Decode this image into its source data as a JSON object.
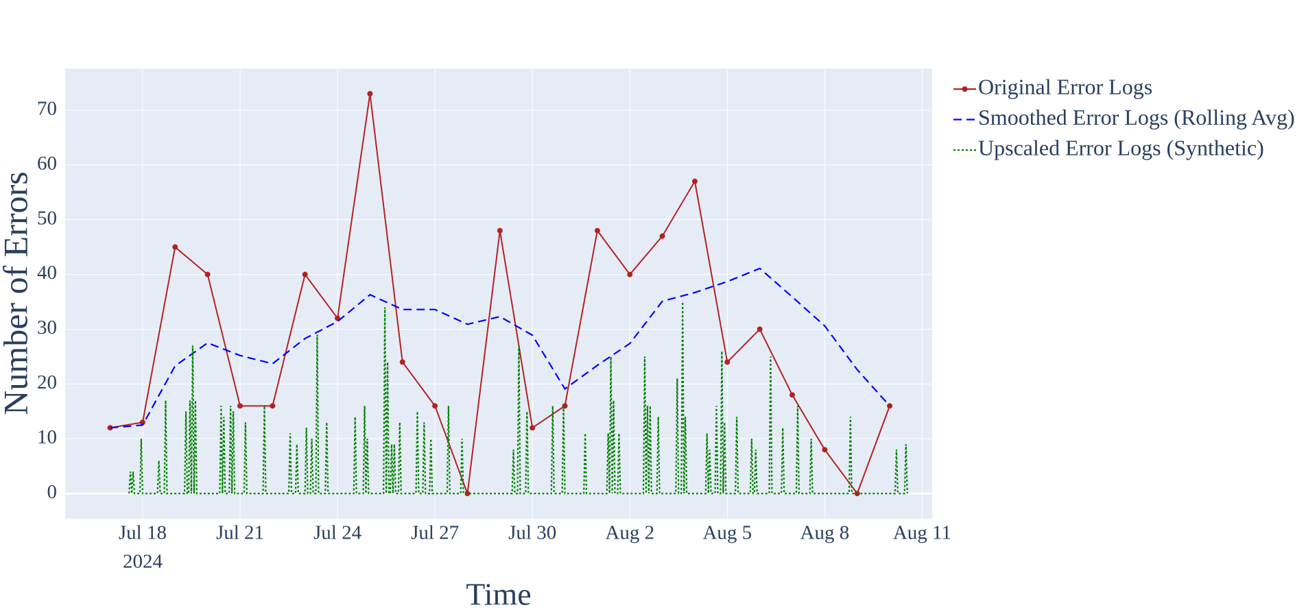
{
  "chart_data": {
    "type": "line",
    "x_title": "Time",
    "y_title": "Number of Errors",
    "x_year_label": "2024",
    "xlim": [
      "2024-07-15T14:46",
      "2024-08-11T07:23"
    ],
    "xticks": [
      {
        "value": "2024-07-18",
        "label": "Jul 18"
      },
      {
        "value": "2024-07-21",
        "label": "Jul 21"
      },
      {
        "value": "2024-07-24",
        "label": "Jul 24"
      },
      {
        "value": "2024-07-27",
        "label": "Jul 27"
      },
      {
        "value": "2024-07-30",
        "label": "Jul 30"
      },
      {
        "value": "2024-08-02",
        "label": "Aug 2"
      },
      {
        "value": "2024-08-05",
        "label": "Aug 5"
      },
      {
        "value": "2024-08-08",
        "label": "Aug 8"
      },
      {
        "value": "2024-08-11",
        "label": "Aug 11"
      }
    ],
    "ylim": [
      -4.6,
      77.6
    ],
    "yticks": [
      0,
      10,
      20,
      30,
      40,
      50,
      60,
      70
    ],
    "grid": true,
    "legend": "outside-top-right",
    "series": [
      {
        "name": "Original Error Logs",
        "color": "#b22222",
        "dash": "solid",
        "markers": true,
        "x": [
          "2024-07-17",
          "2024-07-18",
          "2024-07-19",
          "2024-07-20",
          "2024-07-21",
          "2024-07-22",
          "2024-07-23",
          "2024-07-24",
          "2024-07-25",
          "2024-07-26",
          "2024-07-27",
          "2024-07-28",
          "2024-07-29",
          "2024-07-30",
          "2024-07-31",
          "2024-08-01",
          "2024-08-02",
          "2024-08-03",
          "2024-08-04",
          "2024-08-05",
          "2024-08-06",
          "2024-08-07",
          "2024-08-08",
          "2024-08-09",
          "2024-08-10"
        ],
        "values": [
          12,
          13,
          45,
          40,
          16,
          16,
          40,
          32,
          73,
          24,
          16,
          0,
          48,
          12,
          16,
          48,
          40,
          47,
          57,
          24,
          30,
          18,
          8,
          0,
          16
        ]
      },
      {
        "name": "Smoothed Error Logs (Rolling Avg)",
        "color": "#0000ff",
        "dash": "dash",
        "markers": false,
        "x": [
          "2024-07-17",
          "2024-07-18",
          "2024-07-19",
          "2024-07-20",
          "2024-07-21",
          "2024-07-22",
          "2024-07-23",
          "2024-07-24",
          "2024-07-25",
          "2024-07-26",
          "2024-07-27",
          "2024-07-28",
          "2024-07-29",
          "2024-07-30",
          "2024-07-31",
          "2024-08-01",
          "2024-08-02",
          "2024-08-03",
          "2024-08-04",
          "2024-08-05",
          "2024-08-06",
          "2024-08-07",
          "2024-08-08",
          "2024-08-09",
          "2024-08-10"
        ],
        "values": [
          12,
          12.5,
          23.3,
          27.5,
          25.2,
          23.7,
          28.3,
          31.4,
          36.3,
          33.6,
          33.6,
          30.9,
          32.3,
          28.9,
          19.1,
          23.4,
          27.4,
          35.1,
          36.7,
          38.7,
          41.1,
          35.9,
          30.6,
          22.6,
          16
        ]
      },
      {
        "name": "Upscaled Error Logs (Synthetic)",
        "color": "#008000",
        "dash": "dot",
        "markers": false,
        "x": [
          "2024-07-17T14:00",
          "2024-07-17T15:00",
          "2024-07-17T16:00",
          "2024-07-17T17:00",
          "2024-07-17T18:00",
          "2024-07-17T22:00",
          "2024-07-17T23:00",
          "2024-07-18T00:00",
          "2024-07-18T11:00",
          "2024-07-18T12:00",
          "2024-07-18T13:00",
          "2024-07-18T16:00",
          "2024-07-18T17:00",
          "2024-07-18T18:00",
          "2024-07-19T07:00",
          "2024-07-19T08:00",
          "2024-07-19T09:00",
          "2024-07-19T10:00",
          "2024-07-19T11:00",
          "2024-07-19T12:00",
          "2024-07-19T13:00",
          "2024-07-19T14:00",
          "2024-07-19T15:00",
          "2024-07-19T16:00",
          "2024-07-20T09:00",
          "2024-07-20T10:00",
          "2024-07-20T11:00",
          "2024-07-20T12:00",
          "2024-07-20T13:00",
          "2024-07-20T16:00",
          "2024-07-20T17:00",
          "2024-07-20T18:00",
          "2024-07-20T19:00",
          "2024-07-20T20:00",
          "2024-07-21T03:00",
          "2024-07-21T04:00",
          "2024-07-21T05:00",
          "2024-07-21T17:00",
          "2024-07-21T18:00",
          "2024-07-21T19:00",
          "2024-07-22T12:00",
          "2024-07-22T13:00",
          "2024-07-22T14:00",
          "2024-07-22T17:00",
          "2024-07-22T18:00",
          "2024-07-22T19:00",
          "2024-07-23T00:00",
          "2024-07-23T01:00",
          "2024-07-23T02:00",
          "2024-07-23T04:00",
          "2024-07-23T05:00",
          "2024-07-23T06:00",
          "2024-07-23T08:00",
          "2024-07-23T09:00",
          "2024-07-23T10:00",
          "2024-07-23T15:00",
          "2024-07-23T16:00",
          "2024-07-23T17:00",
          "2024-07-24T12:00",
          "2024-07-24T13:00",
          "2024-07-24T14:00",
          "2024-07-24T19:00",
          "2024-07-24T20:00",
          "2024-07-24T21:00",
          "2024-07-24T22:00",
          "2024-07-24T23:00",
          "2024-07-25T10:00",
          "2024-07-25T11:00",
          "2024-07-25T12:00",
          "2024-07-25T13:00",
          "2024-07-25T14:00",
          "2024-07-25T15:00",
          "2024-07-25T16:00",
          "2024-07-25T17:00",
          "2024-07-25T18:00",
          "2024-07-25T19:00",
          "2024-07-25T21:00",
          "2024-07-25T22:00",
          "2024-07-25T23:00",
          "2024-07-26T10:00",
          "2024-07-26T11:00",
          "2024-07-26T12:00",
          "2024-07-26T15:00",
          "2024-07-26T16:00",
          "2024-07-26T17:00",
          "2024-07-26T20:00",
          "2024-07-26T21:00",
          "2024-07-26T22:00",
          "2024-07-27T09:00",
          "2024-07-27T10:00",
          "2024-07-27T11:00",
          "2024-07-27T19:00",
          "2024-07-27T20:00",
          "2024-07-27T21:00",
          "2024-07-29T09:00",
          "2024-07-29T10:00",
          "2024-07-29T11:00",
          "2024-07-29T13:00",
          "2024-07-29T14:00",
          "2024-07-29T15:00",
          "2024-07-29T19:00",
          "2024-07-29T20:00",
          "2024-07-29T21:00",
          "2024-07-30T14:00",
          "2024-07-30T15:00",
          "2024-07-30T16:00",
          "2024-07-30T22:00",
          "2024-07-30T23:00",
          "2024-07-31T00:00",
          "2024-07-31T14:00",
          "2024-07-31T15:00",
          "2024-07-31T16:00",
          "2024-08-01T07:00",
          "2024-08-01T08:00",
          "2024-08-01T09:00",
          "2024-08-01T10:00",
          "2024-08-01T11:00",
          "2024-08-01T12:00",
          "2024-08-01T13:00",
          "2024-08-01T15:00",
          "2024-08-01T16:00",
          "2024-08-01T17:00",
          "2024-08-02T10:00",
          "2024-08-02T11:00",
          "2024-08-02T12:00",
          "2024-08-02T13:00",
          "2024-08-02T14:00",
          "2024-08-02T15:00",
          "2024-08-02T16:00",
          "2024-08-02T20:00",
          "2024-08-02T21:00",
          "2024-08-02T22:00",
          "2024-08-03T10:00",
          "2024-08-03T11:00",
          "2024-08-03T12:00",
          "2024-08-03T14:00",
          "2024-08-03T15:00",
          "2024-08-03T16:00",
          "2024-08-03T17:00",
          "2024-08-03T18:00",
          "2024-08-04T08:00",
          "2024-08-04T09:00",
          "2024-08-04T10:00",
          "2024-08-04T11:00",
          "2024-08-04T12:00",
          "2024-08-04T15:00",
          "2024-08-04T16:00",
          "2024-08-04T17:00",
          "2024-08-04T19:00",
          "2024-08-04T20:00",
          "2024-08-04T21:00",
          "2024-08-04T22:00",
          "2024-08-04T23:00",
          "2024-08-05T06:00",
          "2024-08-05T07:00",
          "2024-08-05T08:00",
          "2024-08-05T17:00",
          "2024-08-05T18:00",
          "2024-08-05T19:00",
          "2024-08-05T20:00",
          "2024-08-05T21:00",
          "2024-08-05T22:00",
          "2024-08-06T07:00",
          "2024-08-06T08:00",
          "2024-08-06T09:00",
          "2024-08-06T16:00",
          "2024-08-06T17:00",
          "2024-08-06T18:00",
          "2024-08-07T03:00",
          "2024-08-07T04:00",
          "2024-08-07T05:00",
          "2024-08-07T13:00",
          "2024-08-07T14:00",
          "2024-08-07T15:00",
          "2024-08-08T18:00",
          "2024-08-08T19:00",
          "2024-08-08T20:00",
          "2024-08-10T04:00",
          "2024-08-10T05:00",
          "2024-08-10T06:00",
          "2024-08-10T11:00",
          "2024-08-10T12:00",
          "2024-08-10T13:00"
        ],
        "values": [
          0,
          4,
          0,
          4,
          0,
          0,
          10,
          0,
          0,
          6,
          0,
          0,
          17,
          0,
          0,
          15,
          0,
          0,
          17,
          0,
          27,
          0,
          17,
          0,
          0,
          16,
          0,
          14,
          0,
          0,
          16,
          0,
          15,
          0,
          0,
          13,
          0,
          0,
          16,
          0,
          0,
          11,
          0,
          0,
          9,
          0,
          0,
          12,
          0,
          0,
          10,
          0,
          0,
          29,
          0,
          0,
          13,
          0,
          0,
          14,
          0,
          0,
          16,
          0,
          10,
          0,
          0,
          34,
          0,
          24,
          0,
          0,
          9,
          0,
          9,
          0,
          0,
          13,
          0,
          0,
          15,
          0,
          0,
          13,
          0,
          0,
          10,
          0,
          0,
          16,
          0,
          0,
          10,
          0,
          0,
          8,
          0,
          0,
          27,
          0,
          0,
          15,
          0,
          0,
          16,
          0,
          0,
          16,
          0,
          0,
          11,
          0,
          0,
          11,
          0,
          25,
          0,
          17,
          0,
          0,
          11,
          0,
          0,
          25,
          0,
          16,
          0,
          16,
          0,
          0,
          14,
          0,
          0,
          21,
          0,
          0,
          35,
          0,
          14,
          0,
          0,
          11,
          0,
          8,
          0,
          0,
          16,
          0,
          0,
          26,
          0,
          13,
          0,
          0,
          14,
          0,
          0,
          10,
          0,
          0,
          8,
          0,
          0,
          25,
          0,
          0,
          12,
          0,
          0,
          16,
          0,
          0,
          10,
          0,
          0,
          14,
          0,
          0,
          8,
          0,
          0,
          9,
          0
        ]
      }
    ]
  }
}
